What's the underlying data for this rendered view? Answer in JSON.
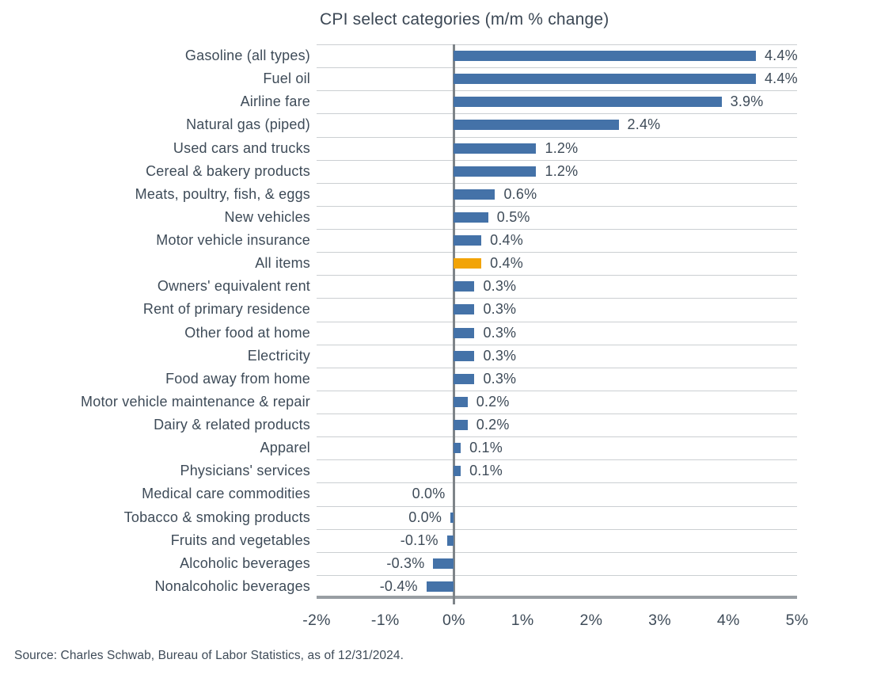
{
  "title": "CPI select categories (m/m % change)",
  "source": "Source: Charles Schwab, Bureau of Labor Statistics, as of 12/31/2024.",
  "colors": {
    "bar_blue": "#4472a8",
    "bar_highlight_orange": "#f2a408",
    "text": "#3e4b58",
    "gridline": "#cbcfd2",
    "zero_axis": "#7e8489",
    "bottom_axis": "#989ea3"
  },
  "chart_data": {
    "type": "bar",
    "orientation": "horizontal",
    "title": "CPI select categories (m/m % change)",
    "xlabel": "",
    "ylabel": "",
    "xlim": [
      -2,
      5
    ],
    "x_tick_labels": [
      "-2%",
      "-1%",
      "0%",
      "1%",
      "2%",
      "3%",
      "4%",
      "5%"
    ],
    "grid": "horizontal row separators only",
    "legend": "none",
    "highlight_category": "All items",
    "points": [
      {
        "category": "Gasoline (all types)",
        "value": 4.4,
        "display": "4.4%"
      },
      {
        "category": "Fuel oil",
        "value": 4.4,
        "display": "4.4%"
      },
      {
        "category": "Airline fare",
        "value": 3.9,
        "display": "3.9%"
      },
      {
        "category": "Natural gas (piped)",
        "value": 2.4,
        "display": "2.4%"
      },
      {
        "category": "Used cars and trucks",
        "value": 1.2,
        "display": "1.2%"
      },
      {
        "category": "Cereal & bakery products",
        "value": 1.2,
        "display": "1.2%"
      },
      {
        "category": "Meats, poultry, fish, & eggs",
        "value": 0.6,
        "display": "0.6%"
      },
      {
        "category": "New vehicles",
        "value": 0.5,
        "display": "0.5%"
      },
      {
        "category": "Motor vehicle insurance",
        "value": 0.4,
        "display": "0.4%"
      },
      {
        "category": "All items",
        "value": 0.4,
        "display": "0.4%",
        "highlight": true
      },
      {
        "category": "Owners' equivalent rent",
        "value": 0.3,
        "display": "0.3%"
      },
      {
        "category": "Rent of primary residence",
        "value": 0.3,
        "display": "0.3%"
      },
      {
        "category": "Other food at home",
        "value": 0.3,
        "display": "0.3%"
      },
      {
        "category": "Electricity",
        "value": 0.3,
        "display": "0.3%"
      },
      {
        "category": "Food away from home",
        "value": 0.3,
        "display": "0.3%"
      },
      {
        "category": "Motor vehicle maintenance & repair",
        "value": 0.2,
        "display": "0.2%"
      },
      {
        "category": "Dairy & related products",
        "value": 0.2,
        "display": "0.2%"
      },
      {
        "category": "Apparel",
        "value": 0.1,
        "display": "0.1%"
      },
      {
        "category": "Physicians' services",
        "value": 0.1,
        "display": "0.1%"
      },
      {
        "category": "Medical care commodities",
        "value": 0.0,
        "display": "0.0%"
      },
      {
        "category": "Tobacco & smoking products",
        "value": 0.0,
        "display": "0.0%",
        "render_value": -0.05
      },
      {
        "category": "Fruits and vegetables",
        "value": -0.1,
        "display": "-0.1%"
      },
      {
        "category": "Alcoholic beverages",
        "value": -0.3,
        "display": "-0.3%"
      },
      {
        "category": "Nonalcoholic beverages",
        "value": -0.4,
        "display": "-0.4%"
      }
    ]
  }
}
